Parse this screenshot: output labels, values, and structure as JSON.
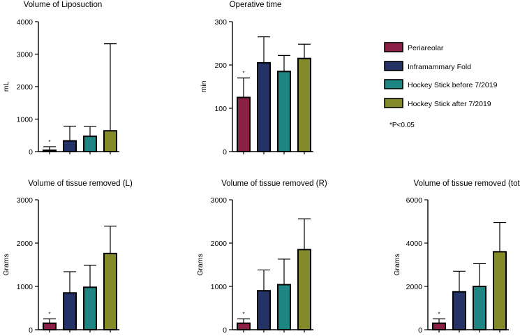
{
  "chart_data": {
    "type": "bar",
    "note": "*P<0.05",
    "legend": [
      {
        "label": "Periareolar",
        "color": "#8b1f45"
      },
      {
        "label": "Inframammary Fold",
        "color": "#243266"
      },
      {
        "label": "Hockey Stick before 7/2019",
        "color": "#1e8582"
      },
      {
        "label": "Hockey Stick after 7/2019",
        "color": "#848a2a"
      }
    ],
    "charts": [
      {
        "id": "liposuction",
        "title": "Volume of Liposuction",
        "ylabel": "mL",
        "ylim": [
          0,
          4000
        ],
        "yticks": [
          "0",
          "1000",
          "2000",
          "3000",
          "4000"
        ],
        "tickvals": [
          0,
          1000,
          2000,
          3000,
          4000
        ],
        "values": [
          40,
          330,
          470,
          640
        ],
        "errors": [
          150,
          780,
          770,
          3320
        ],
        "significant": [
          true,
          false,
          false,
          false
        ]
      },
      {
        "id": "operative-time",
        "title": "Operative time",
        "ylabel": "min",
        "ylim": [
          0,
          300
        ],
        "yticks": [
          "0",
          "100",
          "200",
          "300"
        ],
        "tickvals": [
          0,
          100,
          200,
          300
        ],
        "values": [
          125,
          205,
          185,
          215
        ],
        "errors": [
          170,
          265,
          222,
          248
        ],
        "significant": [
          true,
          false,
          false,
          false
        ]
      },
      {
        "id": "tissue-left",
        "title": "Volume of tissue removed (L)",
        "ylabel": "Grams",
        "ylim": [
          0,
          3000
        ],
        "yticks": [
          "0",
          "1000",
          "2000",
          "3000"
        ],
        "tickvals": [
          0,
          1000,
          2000,
          3000
        ],
        "values": [
          150,
          850,
          980,
          1760
        ],
        "errors": [
          250,
          1340,
          1490,
          2390
        ],
        "significant": [
          true,
          false,
          false,
          false
        ]
      },
      {
        "id": "tissue-right",
        "title": "Volume of tissue removed (R)",
        "ylabel": "Grams",
        "ylim": [
          0,
          3000
        ],
        "yticks": [
          "0",
          "1000",
          "2000",
          "3000"
        ],
        "tickvals": [
          0,
          1000,
          2000,
          3000
        ],
        "values": [
          150,
          900,
          1040,
          1850
        ],
        "errors": [
          250,
          1380,
          1630,
          2560
        ],
        "significant": [
          true,
          false,
          false,
          false
        ]
      },
      {
        "id": "tissue-total",
        "title": "Volume of tissue removed (total)",
        "ylabel": "Grams",
        "ylim": [
          0,
          6000
        ],
        "yticks": [
          "0",
          "2000",
          "4000",
          "6000"
        ],
        "tickvals": [
          0,
          2000,
          4000,
          6000
        ],
        "values": [
          300,
          1750,
          2000,
          3600
        ],
        "errors": [
          500,
          2700,
          3050,
          4950
        ],
        "significant": [
          true,
          false,
          false,
          false
        ]
      }
    ]
  }
}
